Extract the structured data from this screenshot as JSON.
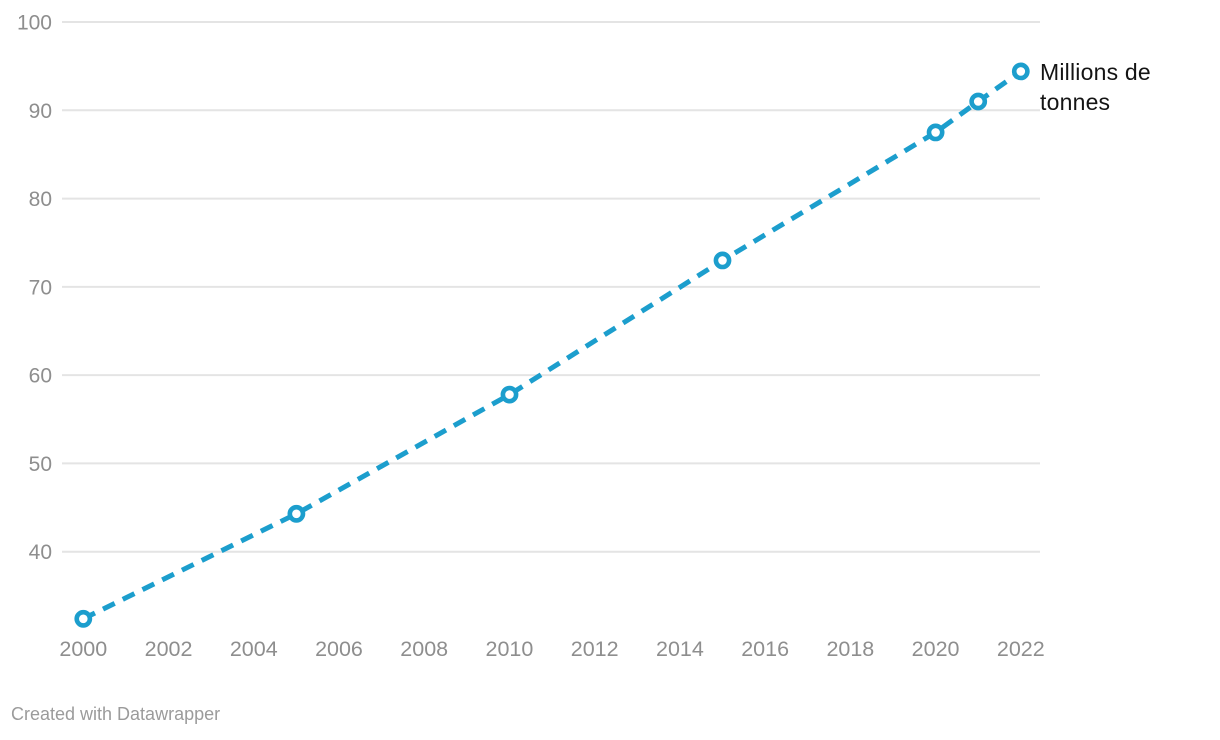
{
  "chart_data": {
    "type": "line",
    "title": "",
    "xlabel": "",
    "ylabel": "",
    "series": [
      {
        "name": "Millions de tonnes",
        "x": [
          2000,
          2005,
          2010,
          2015,
          2020,
          2021,
          2022
        ],
        "values": [
          32.4,
          44.3,
          57.8,
          73.0,
          87.5,
          91.0,
          94.4
        ]
      }
    ],
    "x_ticks": [
      2000,
      2002,
      2004,
      2006,
      2008,
      2010,
      2012,
      2014,
      2016,
      2018,
      2020,
      2022
    ],
    "y_ticks": [
      40,
      50,
      60,
      70,
      80,
      90,
      100
    ],
    "xlim": [
      1999.5,
      2022.45
    ],
    "ylim": [
      30,
      100
    ],
    "grid": "horizontal",
    "line_style": "dashed",
    "marker": "open-circle",
    "legend_position": "end-of-line"
  },
  "annotation": {
    "series_label": "Millions de tonnes"
  },
  "footer": {
    "credit": "Created with Datawrapper"
  },
  "colors": {
    "line": "#1c9ecd",
    "marker_fill": "#ffffff",
    "grid": "#e4e4e4",
    "axis_text": "#8e8e8e",
    "label_text": "#141414",
    "footer_text": "#9b9b9b",
    "background": "#ffffff"
  }
}
